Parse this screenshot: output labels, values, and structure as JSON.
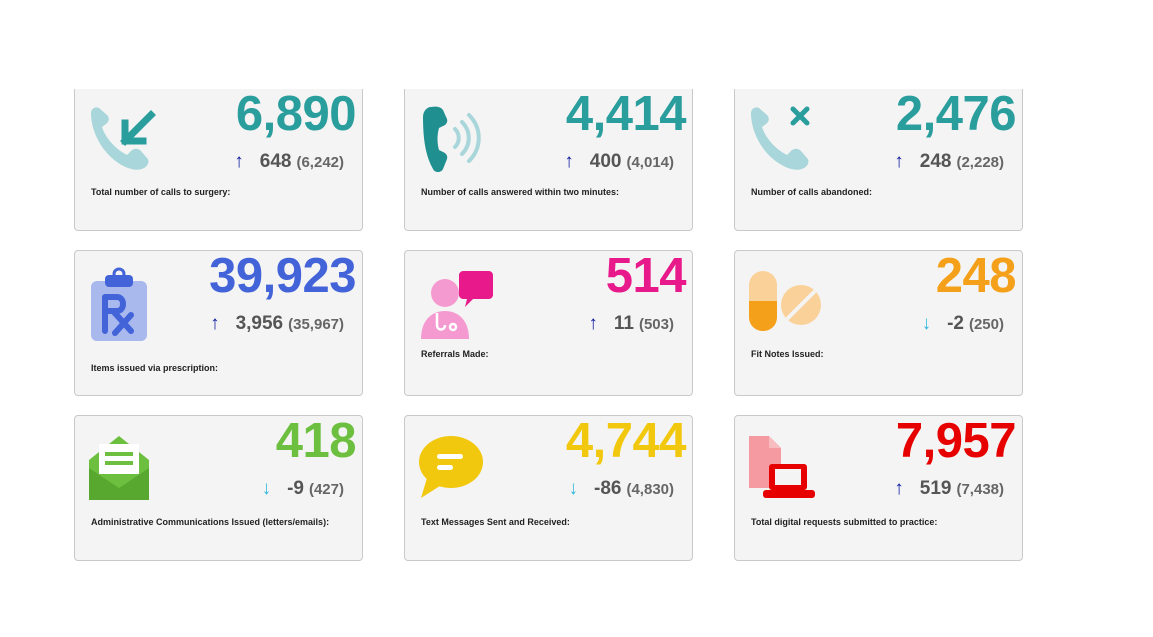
{
  "cards": [
    {
      "value": "6,890",
      "delta": "648",
      "prev": "(6,242)",
      "direction": "up",
      "label": "Total number of calls to surgery:",
      "value_color": "#2a9d9d",
      "icon": "phone-incoming-icon"
    },
    {
      "value": "4,414",
      "delta": "400",
      "prev": "(4,014)",
      "direction": "up",
      "label": "Number of calls answered within two minutes:",
      "value_color": "#2a9d9d",
      "icon": "phone-ringing-icon"
    },
    {
      "value": "2,476",
      "delta": "248",
      "prev": "(2,228)",
      "direction": "up",
      "label": "Number of calls abandoned:",
      "value_color": "#2a9d9d",
      "icon": "phone-missed-icon"
    },
    {
      "value": "39,923",
      "delta": "3,956",
      "prev": "(35,967)",
      "direction": "up",
      "label": "Items issued via prescription:",
      "value_color": "#4363d8",
      "icon": "prescription-clipboard-icon"
    },
    {
      "value": "514",
      "delta": "11",
      "prev": "(503)",
      "direction": "up",
      "label": "Referrals Made:",
      "value_color": "#e8198b",
      "icon": "doctor-chat-icon"
    },
    {
      "value": "248",
      "delta": "-2",
      "prev": "(250)",
      "direction": "down",
      "label": "Fit Notes Issued:",
      "value_color": "#f5a01a",
      "icon": "pills-icon"
    },
    {
      "value": "418",
      "delta": "-9",
      "prev": "(427)",
      "direction": "down",
      "label": "Administrative Communications Issued (letters/emails):",
      "value_color": "#6cbf3f",
      "icon": "envelope-letter-icon"
    },
    {
      "value": "4,744",
      "delta": "-86",
      "prev": "(4,830)",
      "direction": "down",
      "label": "Text Messages Sent and Received:",
      "value_color": "#f2c80f",
      "icon": "speech-bubble-icon"
    },
    {
      "value": "7,957",
      "delta": "519",
      "prev": "(7,438)",
      "direction": "up",
      "label": "Total digital requests submitted to practice:",
      "value_color": "#e60000",
      "icon": "laptop-document-icon"
    }
  ],
  "arrows": {
    "up": "↑",
    "down": "↓"
  },
  "colors": {
    "arrow_up": "#0d1a9e",
    "arrow_down": "#2fb8da"
  }
}
